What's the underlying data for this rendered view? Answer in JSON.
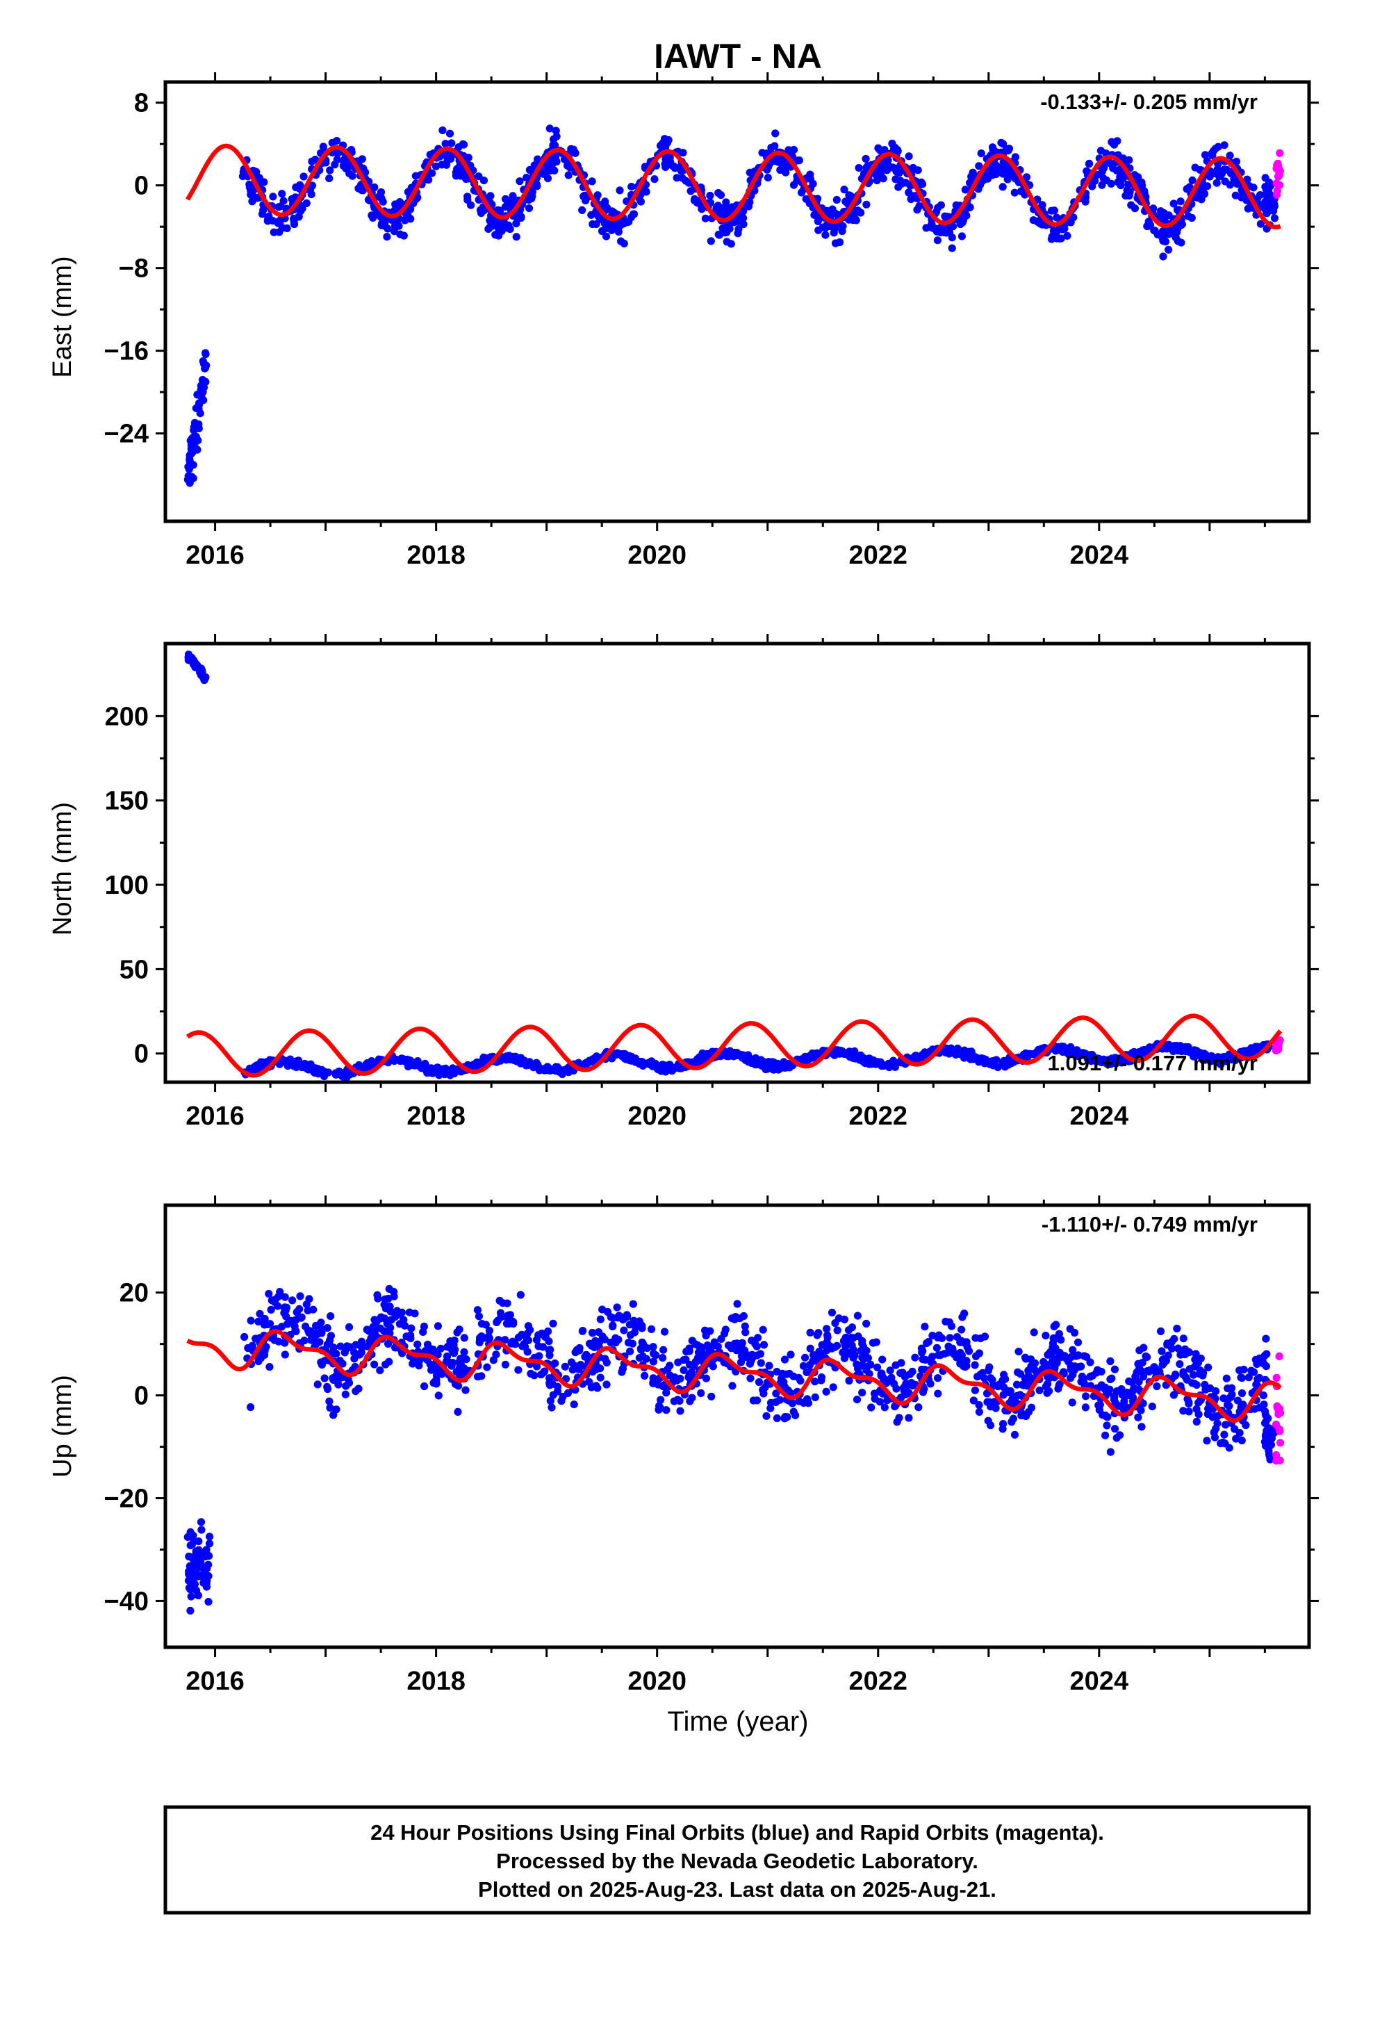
{
  "title": "IAWT - NA",
  "x_axis_label": "Time (year)",
  "colors": {
    "final": "#0000ff",
    "rapid": "#ff00ff",
    "model": "#ff0000",
    "frame": "#000000"
  },
  "footer": {
    "line1": "24 Hour Positions Using Final Orbits (blue) and Rapid Orbits (magenta).",
    "line2": "Processed by the Nevada Geodetic Laboratory.",
    "line3": "Plotted on 2025-Aug-23. Last data on 2025-Aug-21."
  },
  "chart_data": [
    {
      "type": "scatter",
      "panel": "east",
      "ylabel": "East (mm)",
      "rate": "-0.133+/- 0.205 mm/yr",
      "xlim": [
        2015.55,
        2025.9
      ],
      "ylim": [
        -32.5,
        10
      ],
      "xticks": [
        2016,
        2018,
        2020,
        2022,
        2024
      ],
      "yticks": [
        8,
        0,
        -8,
        -16,
        -24
      ],
      "ytick_labels": [
        "8",
        "0",
        "−8",
        "−16",
        "−24"
      ],
      "grid": false,
      "series": [
        {
          "role": "offset-segment",
          "x_range": [
            2015.75,
            2015.92
          ],
          "y_start": -29,
          "y_end": -17,
          "spread": 2.2,
          "count": 60
        },
        {
          "role": "final-orbits",
          "x_range": [
            2016.25,
            2025.48
          ],
          "offset": -0.3,
          "trend": -0.133,
          "amp": 3.2,
          "phase": 2017.1,
          "noise": 1.4,
          "count": 1450
        },
        {
          "role": "final-orbits-tail",
          "x_range": [
            2025.5,
            2025.59
          ],
          "offset": -1.5,
          "trend": 0,
          "amp": 0,
          "phase": 2017.1,
          "noise": 1.3,
          "count": 35
        },
        {
          "role": "rapid-orbits",
          "x_range": [
            2025.6,
            2025.64
          ],
          "offset": 0.8,
          "trend": 0,
          "amp": 0,
          "phase": 2017.1,
          "noise": 1.8,
          "count": 18
        }
      ],
      "model": {
        "x_range": [
          2015.75,
          2025.64
        ],
        "offset": 0,
        "trend": -0.133,
        "amp": 3.3,
        "phase": 2017.1,
        "amp2": 0,
        "phase2": 0
      }
    },
    {
      "type": "scatter",
      "panel": "north",
      "ylabel": "North (mm)",
      "rate": "1.091+/- 0.177 mm/yr",
      "xlim": [
        2015.55,
        2025.9
      ],
      "ylim": [
        -17,
        243
      ],
      "xticks": [
        2016,
        2018,
        2020,
        2022,
        2024
      ],
      "yticks": [
        200,
        150,
        100,
        50,
        0
      ],
      "ytick_labels": [
        "200",
        "150",
        "100",
        "50",
        "0"
      ],
      "grid": false,
      "series": [
        {
          "role": "offset-segment",
          "x_range": [
            2015.75,
            2015.92
          ],
          "y_start": 236,
          "y_end": 222,
          "spread": 1.5,
          "count": 40
        },
        {
          "role": "final-orbits",
          "x_range": [
            2016.25,
            2025.55
          ],
          "offset": -5,
          "trend": 1.091,
          "amp": 4,
          "phase": 2017.6,
          "noise": 1.5,
          "count": 1450
        },
        {
          "role": "rapid-orbits",
          "x_range": [
            2025.6,
            2025.64
          ],
          "offset": 5,
          "trend": 0,
          "amp": 0,
          "phase": 2017.6,
          "noise": 2.5,
          "count": 15
        }
      ],
      "model": {
        "x_range": [
          2015.75,
          2025.64
        ],
        "offset": 4,
        "trend": 1.091,
        "amp": 13,
        "phase": 2016.85,
        "amp2": 0,
        "phase2": 0
      }
    },
    {
      "type": "scatter",
      "panel": "up",
      "ylabel": "Up (mm)",
      "rate": "-1.110+/- 0.749 mm/yr",
      "xlim": [
        2015.55,
        2025.9
      ],
      "ylim": [
        -49,
        37
      ],
      "xticks": [
        2016,
        2018,
        2020,
        2022,
        2024
      ],
      "yticks": [
        20,
        0,
        -20,
        -40
      ],
      "ytick_labels": [
        "20",
        "0",
        "−20",
        "−40"
      ],
      "grid": false,
      "series": [
        {
          "role": "offset-segment",
          "x_range": [
            2015.75,
            2015.95
          ],
          "y_start": -35,
          "y_end": -32,
          "spread": 5,
          "count": 80
        },
        {
          "role": "final-orbits",
          "x_range": [
            2016.25,
            2025.52
          ],
          "offset": 7,
          "trend": -1.11,
          "amp": 4.5,
          "phase": 2016.65,
          "noise": 5.2,
          "count": 1400
        },
        {
          "role": "final-orbits-tail",
          "x_range": [
            2025.5,
            2025.59
          ],
          "offset": -8,
          "trend": 0,
          "amp": 0,
          "phase": 2016.65,
          "noise": 4,
          "count": 30
        },
        {
          "role": "rapid-orbits",
          "x_range": [
            2025.6,
            2025.64
          ],
          "offset": -6,
          "trend": 0,
          "amp": 0,
          "phase": 2016.65,
          "noise": 8,
          "count": 18
        }
      ],
      "model": {
        "x_range": [
          2015.75,
          2025.64
        ],
        "offset": 5,
        "trend": -1.11,
        "amp": 3,
        "phase": 2016.65,
        "amp2": 1.5,
        "phase2": 2016.5
      }
    }
  ]
}
